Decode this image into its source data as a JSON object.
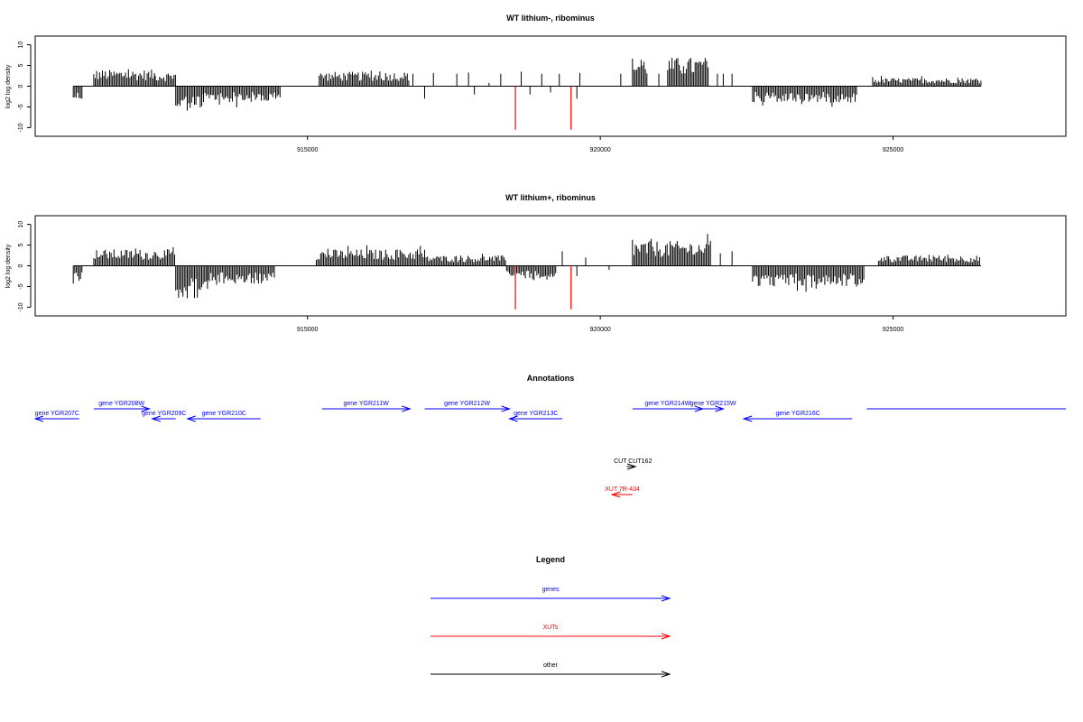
{
  "colors": {
    "gene": "#0000ff",
    "xut": "#ff0000",
    "other": "#000000",
    "signal": "#000000",
    "highlight": "#ff0000"
  },
  "chart_data": [
    {
      "type": "bar",
      "title": "WT lithium-, ribominus",
      "ylabel": "log2 log density",
      "xlim": [
        910350,
        927950
      ],
      "ylim": [
        -11,
        11
      ],
      "x_ticks": [
        915000,
        920000,
        925000
      ],
      "x_tick_labels": [
        "915000",
        "920000",
        "925000"
      ],
      "y_ticks": [
        -10,
        -5,
        0,
        5,
        10
      ],
      "y_tick_labels": [
        "-10",
        "-5",
        "0",
        "5",
        "10"
      ],
      "grid": false,
      "segments": [
        {
          "x": [
            911000,
            911150
          ],
          "value": -3.5
        },
        {
          "x": [
            911350,
            912400
          ],
          "value": 4
        },
        {
          "x": [
            912400,
            912750
          ],
          "value": 3.5
        },
        {
          "x": [
            912750,
            913200
          ],
          "value": -6
        },
        {
          "x": [
            913200,
            914550
          ],
          "value": -4
        },
        {
          "x": [
            915200,
            916750
          ],
          "value": 3.5
        },
        {
          "x": [
            920550,
            920800
          ],
          "value": 7
        },
        {
          "x": [
            921150,
            921850
          ],
          "value": 7
        },
        {
          "x": [
            922600,
            924400
          ],
          "value": -4
        },
        {
          "x": [
            924650,
            926500
          ],
          "value": 2
        }
      ],
      "sparse_marks": [
        {
          "x": 916800,
          "value": 3
        },
        {
          "x": 917000,
          "value": -3
        },
        {
          "x": 917150,
          "value": 3.2
        },
        {
          "x": 917550,
          "value": 3
        },
        {
          "x": 917750,
          "value": 3.3
        },
        {
          "x": 917850,
          "value": -2
        },
        {
          "x": 918100,
          "value": 0.8
        },
        {
          "x": 918300,
          "value": 3
        },
        {
          "x": 918650,
          "value": 3.5
        },
        {
          "x": 918800,
          "value": -2
        },
        {
          "x": 919000,
          "value": 3
        },
        {
          "x": 919150,
          "value": -1.5
        },
        {
          "x": 919300,
          "value": 3
        },
        {
          "x": 919650,
          "value": 3.2
        },
        {
          "x": 919600,
          "value": -3
        },
        {
          "x": 920350,
          "value": 3
        },
        {
          "x": 921000,
          "value": 3
        },
        {
          "x": 922000,
          "value": 3
        },
        {
          "x": 922100,
          "value": 3
        },
        {
          "x": 922250,
          "value": 3
        }
      ],
      "highlights": [
        {
          "x": 918550,
          "value": -10.5
        },
        {
          "x": 919500,
          "value": -10.5
        }
      ]
    },
    {
      "type": "bar",
      "title": "WT lithium+, ribominus",
      "ylabel": "log2 log density",
      "xlim": [
        910350,
        927950
      ],
      "ylim": [
        -11,
        11
      ],
      "x_ticks": [
        915000,
        920000,
        925000
      ],
      "x_tick_labels": [
        "915000",
        "920000",
        "925000"
      ],
      "y_ticks": [
        -10,
        -5,
        0,
        5,
        10
      ],
      "y_tick_labels": [
        "-10",
        "-5",
        "0",
        "5",
        "10"
      ],
      "grid": false,
      "segments": [
        {
          "x": [
            911000,
            911150
          ],
          "value": -4
        },
        {
          "x": [
            911350,
            912750
          ],
          "value": 4
        },
        {
          "x": [
            912750,
            913300
          ],
          "value": -8
        },
        {
          "x": [
            913300,
            914450
          ],
          "value": -4.5
        },
        {
          "x": [
            915150,
            917000
          ],
          "value": 4
        },
        {
          "x": [
            917000,
            918400
          ],
          "value": 2.5
        },
        {
          "x": [
            918400,
            919250
          ],
          "value": -3
        },
        {
          "x": [
            920550,
            921900
          ],
          "value": 6
        },
        {
          "x": [
            922600,
            924500
          ],
          "value": -5
        },
        {
          "x": [
            924750,
            926500
          ],
          "value": 2.5
        }
      ],
      "sparse_marks": [
        {
          "x": 919350,
          "value": 3.5
        },
        {
          "x": 919600,
          "value": -2.5
        },
        {
          "x": 919750,
          "value": 2
        },
        {
          "x": 920150,
          "value": -1
        },
        {
          "x": 922050,
          "value": 3
        },
        {
          "x": 922250,
          "value": 3.5
        }
      ],
      "highlights": [
        {
          "x": 918550,
          "value": -10.5
        },
        {
          "x": 919500,
          "value": -10.5
        }
      ]
    }
  ],
  "annotations": {
    "title": "Annotations",
    "genes": [
      {
        "label": "gene YGR207C",
        "start": 910350,
        "end": 911100,
        "dir": -1,
        "row": 1
      },
      {
        "label": "gene YGR208W",
        "start": 911350,
        "end": 912300,
        "dir": 1,
        "row": 0
      },
      {
        "label": "gene YGR209C",
        "start": 912350,
        "end": 912750,
        "dir": -1,
        "row": 1
      },
      {
        "label": "gene YGR210C",
        "start": 912950,
        "end": 914200,
        "dir": -1,
        "row": 1
      },
      {
        "label": "gene YGR211W",
        "start": 915250,
        "end": 916750,
        "dir": 1,
        "row": 0
      },
      {
        "label": "gene YGR212W",
        "start": 917000,
        "end": 918450,
        "dir": 1,
        "row": 0
      },
      {
        "label": "gene YGR213C",
        "start": 918450,
        "end": 919350,
        "dir": -1,
        "row": 1
      },
      {
        "label": "gene YGR214W",
        "start": 920550,
        "end": 921750,
        "dir": 1,
        "row": 0
      },
      {
        "label": "gene YGR215W",
        "start": 921750,
        "end": 922100,
        "dir": 1,
        "row": 0
      },
      {
        "label": "gene YGR216C",
        "start": 922450,
        "end": 924300,
        "dir": -1,
        "row": 1
      },
      {
        "label": "",
        "start": 924550,
        "end": 927950,
        "dir": 0,
        "row": 0
      }
    ],
    "other": [
      {
        "label": "CUT CUT162",
        "start": 920450,
        "end": 920600,
        "dir": 1
      }
    ],
    "xuts": [
      {
        "label": "XUT 7R-434",
        "start": 920200,
        "end": 920550,
        "dir": -1
      }
    ]
  },
  "legend": {
    "title": "Legend",
    "items": [
      {
        "label": "genes",
        "color": "#0000ff"
      },
      {
        "label": "XUTs",
        "color": "#ff0000"
      },
      {
        "label": "other",
        "color": "#000000"
      }
    ]
  }
}
